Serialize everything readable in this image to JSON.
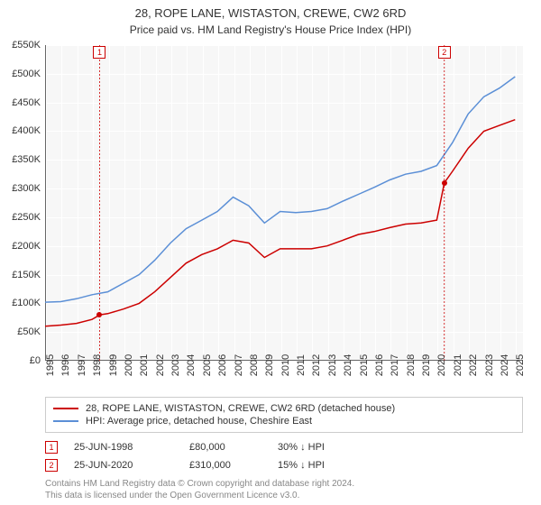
{
  "title": "28, ROPE LANE, WISTASTON, CREWE, CW2 6RD",
  "subtitle": "Price paid vs. HM Land Registry's House Price Index (HPI)",
  "chart": {
    "type": "line",
    "background_color": "#f7f7f7",
    "grid_color": "#ffffff",
    "axis_color": "#666666",
    "title_fontsize": 13,
    "label_fontsize": 11,
    "xlim": [
      1995,
      2025.5
    ],
    "ylim": [
      0,
      550000
    ],
    "ytick_step": 50000,
    "yticks": [
      "£0",
      "£50K",
      "£100K",
      "£150K",
      "£200K",
      "£250K",
      "£300K",
      "£350K",
      "£400K",
      "£450K",
      "£500K",
      "£550K"
    ],
    "xticks": [
      1995,
      1996,
      1997,
      1998,
      1999,
      2000,
      2001,
      2002,
      2003,
      2004,
      2005,
      2006,
      2007,
      2008,
      2009,
      2010,
      2011,
      2012,
      2013,
      2014,
      2015,
      2016,
      2017,
      2018,
      2019,
      2020,
      2021,
      2022,
      2023,
      2024,
      2025
    ],
    "series": [
      {
        "name": "price_paid",
        "label": "28, ROPE LANE, WISTASTON, CREWE, CW2 6RD (detached house)",
        "color": "#cc0000",
        "line_width": 1.5,
        "values": [
          [
            1995.0,
            60000
          ],
          [
            1996.0,
            62000
          ],
          [
            1997.0,
            65000
          ],
          [
            1998.0,
            72000
          ],
          [
            1998.5,
            80000
          ],
          [
            1999.0,
            82000
          ],
          [
            2000.0,
            90000
          ],
          [
            2001.0,
            100000
          ],
          [
            2002.0,
            120000
          ],
          [
            2003.0,
            145000
          ],
          [
            2004.0,
            170000
          ],
          [
            2005.0,
            185000
          ],
          [
            2006.0,
            195000
          ],
          [
            2007.0,
            210000
          ],
          [
            2008.0,
            205000
          ],
          [
            2009.0,
            180000
          ],
          [
            2010.0,
            195000
          ],
          [
            2011.0,
            195000
          ],
          [
            2012.0,
            195000
          ],
          [
            2013.0,
            200000
          ],
          [
            2014.0,
            210000
          ],
          [
            2015.0,
            220000
          ],
          [
            2016.0,
            225000
          ],
          [
            2017.0,
            232000
          ],
          [
            2018.0,
            238000
          ],
          [
            2019.0,
            240000
          ],
          [
            2020.0,
            245000
          ],
          [
            2020.48,
            310000
          ],
          [
            2021.0,
            330000
          ],
          [
            2022.0,
            370000
          ],
          [
            2023.0,
            400000
          ],
          [
            2024.0,
            410000
          ],
          [
            2025.0,
            420000
          ]
        ]
      },
      {
        "name": "hpi",
        "label": "HPI: Average price, detached house, Cheshire East",
        "color": "#5b8fd6",
        "line_width": 1.5,
        "values": [
          [
            1995.0,
            102000
          ],
          [
            1996.0,
            103000
          ],
          [
            1997.0,
            108000
          ],
          [
            1998.0,
            115000
          ],
          [
            1999.0,
            120000
          ],
          [
            2000.0,
            135000
          ],
          [
            2001.0,
            150000
          ],
          [
            2002.0,
            175000
          ],
          [
            2003.0,
            205000
          ],
          [
            2004.0,
            230000
          ],
          [
            2005.0,
            245000
          ],
          [
            2006.0,
            260000
          ],
          [
            2007.0,
            285000
          ],
          [
            2008.0,
            270000
          ],
          [
            2009.0,
            240000
          ],
          [
            2010.0,
            260000
          ],
          [
            2011.0,
            258000
          ],
          [
            2012.0,
            260000
          ],
          [
            2013.0,
            265000
          ],
          [
            2014.0,
            278000
          ],
          [
            2015.0,
            290000
          ],
          [
            2016.0,
            302000
          ],
          [
            2017.0,
            315000
          ],
          [
            2018.0,
            325000
          ],
          [
            2019.0,
            330000
          ],
          [
            2020.0,
            340000
          ],
          [
            2021.0,
            380000
          ],
          [
            2022.0,
            430000
          ],
          [
            2023.0,
            460000
          ],
          [
            2024.0,
            475000
          ],
          [
            2025.0,
            495000
          ]
        ]
      }
    ],
    "markers": [
      {
        "n": "1",
        "x": 1998.48,
        "y_top": true,
        "dot_y": 80000
      },
      {
        "n": "2",
        "x": 2020.48,
        "y_top": true,
        "dot_y": 310000
      }
    ]
  },
  "legend": {
    "items": [
      {
        "color": "#cc0000",
        "label": "28, ROPE LANE, WISTASTON, CREWE, CW2 6RD (detached house)"
      },
      {
        "color": "#5b8fd6",
        "label": "HPI: Average price, detached house, Cheshire East"
      }
    ]
  },
  "events": [
    {
      "n": "1",
      "date": "25-JUN-1998",
      "price": "£80,000",
      "pct": "30% ↓ HPI"
    },
    {
      "n": "2",
      "date": "25-JUN-2020",
      "price": "£310,000",
      "pct": "15% ↓ HPI"
    }
  ],
  "footer_line1": "Contains HM Land Registry data © Crown copyright and database right 2024.",
  "footer_line2": "This data is licensed under the Open Government Licence v3.0."
}
